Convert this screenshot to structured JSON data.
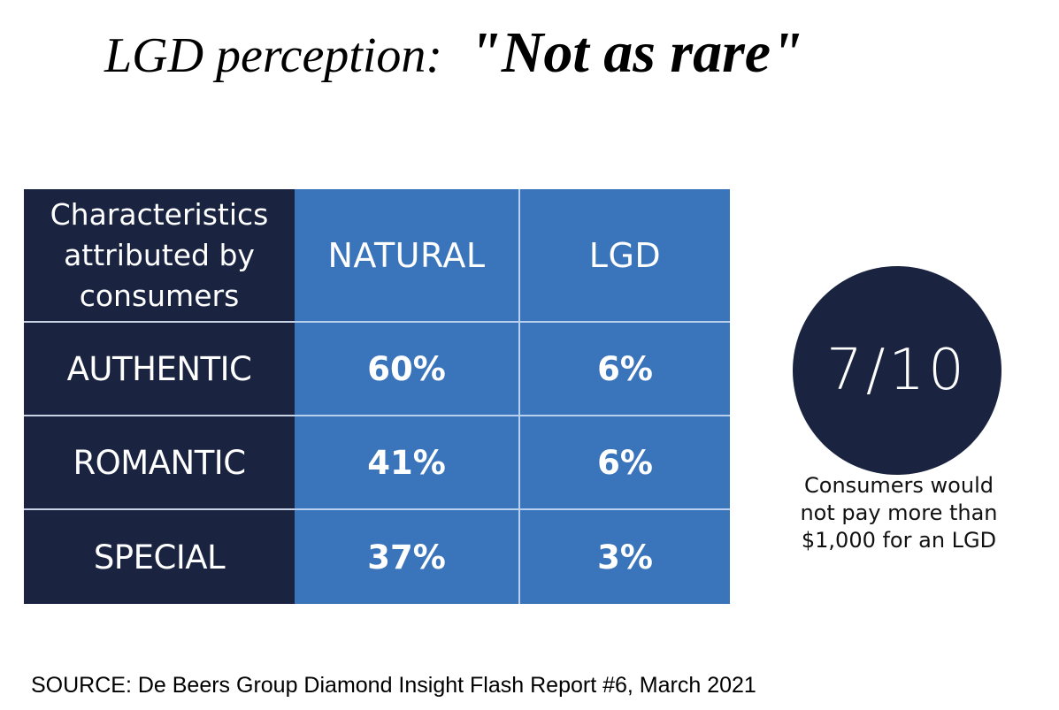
{
  "title": {
    "lead": "LGD perception:",
    "quote": "\"Not as rare\""
  },
  "chart_data": {
    "type": "table",
    "header": {
      "first": [
        "Characteristics",
        "attributed by",
        "consumers"
      ],
      "columns": [
        "NATURAL",
        "LGD"
      ]
    },
    "rows": [
      {
        "label": "AUTHENTIC",
        "values": [
          "60%",
          "6%"
        ]
      },
      {
        "label": "ROMANTIC",
        "values": [
          "41%",
          "6%"
        ]
      },
      {
        "label": "SPECIAL",
        "values": [
          "37%",
          "3%"
        ]
      }
    ]
  },
  "stat": {
    "value": "7/10",
    "caption": [
      "Consumers would",
      "not pay more than",
      "$1,000 for an LGD"
    ]
  },
  "source": "SOURCE: De Beers Group Diamond Insight Flash Report #6, March 2021",
  "colors": {
    "dark_navy": "#1a2440",
    "table_blue": "#3a74bb"
  }
}
